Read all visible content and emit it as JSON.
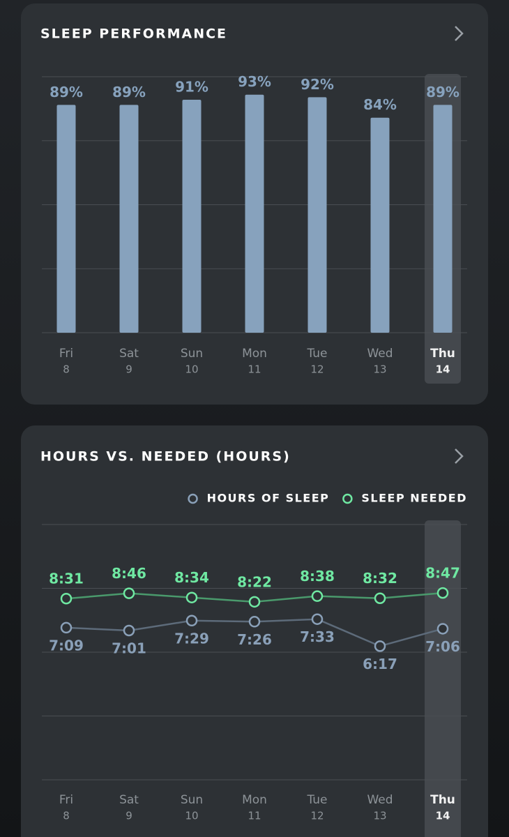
{
  "chart_data": [
    {
      "type": "bar",
      "title": "SLEEP PERFORMANCE",
      "categories": [
        [
          "Fri",
          "8"
        ],
        [
          "Sat",
          "9"
        ],
        [
          "Sun",
          "10"
        ],
        [
          "Mon",
          "11"
        ],
        [
          "Tue",
          "12"
        ],
        [
          "Wed",
          "13"
        ],
        [
          "Thu",
          "14"
        ]
      ],
      "values": [
        89,
        89,
        91,
        93,
        92,
        84,
        89
      ],
      "value_labels": [
        "89%",
        "89%",
        "91%",
        "93%",
        "92%",
        "84%",
        "89%"
      ],
      "color": "#87a2bd",
      "ylim": [
        0,
        100
      ],
      "yticks": [
        0,
        25,
        50,
        75,
        100
      ],
      "grid": true,
      "tick_labels": false,
      "highlight": 6
    },
    {
      "type": "line",
      "title": "HOURS VS. NEEDED (HOURS)",
      "categories": [
        [
          "Fri",
          "8"
        ],
        [
          "Sat",
          "9"
        ],
        [
          "Sun",
          "10"
        ],
        [
          "Mon",
          "11"
        ],
        [
          "Tue",
          "12"
        ],
        [
          "Wed",
          "13"
        ],
        [
          "Thu",
          "14"
        ]
      ],
      "series": [
        {
          "name": "HOURS OF SLEEP",
          "color": "#8aa0b8",
          "line_color": "#5d6b7a",
          "label_side": "below",
          "values": [
            7.15,
            7.0167,
            7.4833,
            7.4333,
            7.55,
            6.2833,
            7.1
          ],
          "value_labels": [
            "7:09",
            "7:01",
            "7:29",
            "7:26",
            "7:33",
            "6:17",
            "7:06"
          ]
        },
        {
          "name": "SLEEP NEEDED",
          "color": "#6fe8a2",
          "line_color": "#4a9a6c",
          "label_side": "above",
          "values": [
            8.5167,
            8.7667,
            8.5667,
            8.3667,
            8.6333,
            8.5333,
            8.7833
          ],
          "value_labels": [
            "8:31",
            "8:46",
            "8:34",
            "8:22",
            "8:38",
            "8:32",
            "8:47"
          ]
        }
      ],
      "ylim": [
        0,
        12
      ],
      "yticks": [
        0,
        3,
        6,
        9,
        12
      ],
      "grid": true,
      "tick_labels": false,
      "highlight": 6,
      "legend": "top-right"
    }
  ]
}
